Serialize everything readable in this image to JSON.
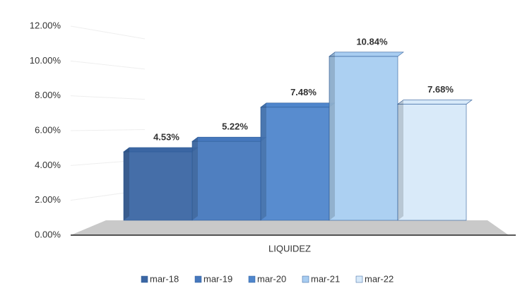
{
  "chart_data": {
    "type": "bar3d",
    "categories": [
      "LIQUIDEZ"
    ],
    "series": [
      {
        "name": "mar-18",
        "color": "#3b66a3",
        "values": [
          4.53
        ],
        "value_labels": [
          "4.53%"
        ]
      },
      {
        "name": "mar-19",
        "color": "#4678bd",
        "values": [
          5.22
        ],
        "value_labels": [
          "5.22%"
        ]
      },
      {
        "name": "mar-20",
        "color": "#4f86cc",
        "values": [
          7.48
        ],
        "value_labels": [
          "7.48%"
        ]
      },
      {
        "name": "mar-21",
        "color": "#a8cdf1",
        "values": [
          10.84
        ],
        "value_labels": [
          "10.84%"
        ]
      },
      {
        "name": "mar-22",
        "color": "#d7e9f9",
        "values": [
          7.68
        ],
        "value_labels": [
          "7.68%"
        ]
      }
    ],
    "ylim": [
      0,
      12
    ],
    "yticks": [
      {
        "value": 0,
        "label": "0.00%"
      },
      {
        "value": 2,
        "label": "2.00%"
      },
      {
        "value": 4,
        "label": "4.00%"
      },
      {
        "value": 6,
        "label": "6.00%"
      },
      {
        "value": 8,
        "label": "8.00%"
      },
      {
        "value": 10,
        "label": "10.00%"
      },
      {
        "value": 12,
        "label": "12.00%"
      }
    ],
    "grid": true,
    "legend": "bottom"
  }
}
